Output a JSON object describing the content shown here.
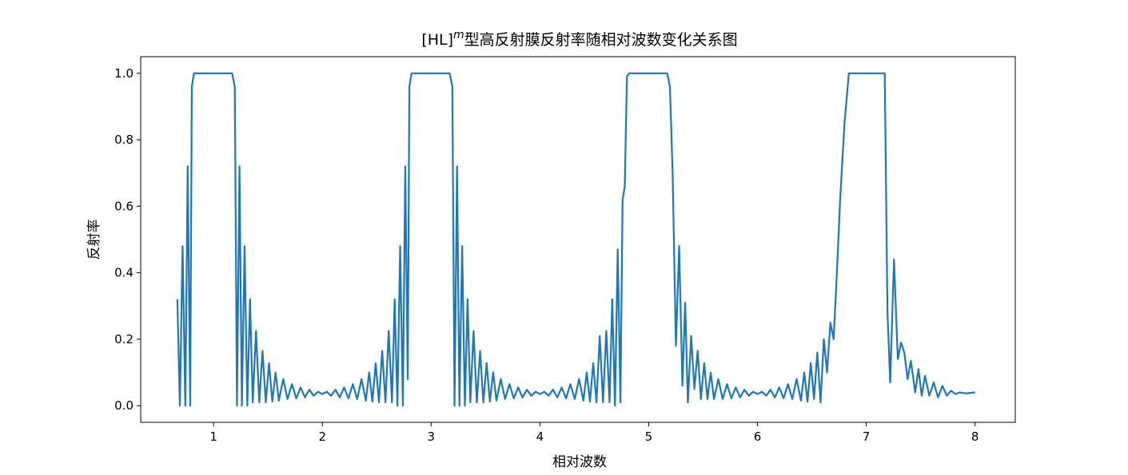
{
  "chart_data": {
    "type": "line",
    "title": "[HL]",
    "title_superscript": "m",
    "title_suffix": "型高反射膜反射率随相对波数变化关系图",
    "xlabel": "相对波数",
    "ylabel": "反射率",
    "xlim": [
      0.33,
      8.37
    ],
    "ylim": [
      -0.05,
      1.05
    ],
    "x_ticks": [
      1,
      2,
      3,
      4,
      5,
      6,
      7,
      8
    ],
    "x_tick_labels": [
      "1",
      "2",
      "3",
      "4",
      "5",
      "6",
      "7",
      "8"
    ],
    "y_ticks": [
      0.0,
      0.2,
      0.4,
      0.6,
      0.8,
      1.0
    ],
    "y_tick_labels": [
      "0.0",
      "0.2",
      "0.4",
      "0.6",
      "0.8",
      "1.0"
    ],
    "grid": false,
    "series": [
      {
        "color": "#1f77b4",
        "points": [
          [
            0.667,
            0.32
          ],
          [
            0.69,
            0.0
          ],
          [
            0.715,
            0.48
          ],
          [
            0.74,
            0.0
          ],
          [
            0.762,
            0.72
          ],
          [
            0.785,
            0.0
          ],
          [
            0.8,
            0.96
          ],
          [
            0.82,
            1.0
          ],
          [
            1.17,
            1.0
          ],
          [
            1.195,
            0.96
          ],
          [
            1.215,
            0.0
          ],
          [
            1.238,
            0.72
          ],
          [
            1.26,
            0.0
          ],
          [
            1.285,
            0.48
          ],
          [
            1.31,
            0.0
          ],
          [
            1.335,
            0.32
          ],
          [
            1.36,
            0.01
          ],
          [
            1.39,
            0.225
          ],
          [
            1.42,
            0.01
          ],
          [
            1.45,
            0.165
          ],
          [
            1.48,
            0.01
          ],
          [
            1.51,
            0.128
          ],
          [
            1.54,
            0.012
          ],
          [
            1.57,
            0.1
          ],
          [
            1.6,
            0.015
          ],
          [
            1.64,
            0.08
          ],
          [
            1.68,
            0.02
          ],
          [
            1.72,
            0.065
          ],
          [
            1.76,
            0.022
          ],
          [
            1.8,
            0.055
          ],
          [
            1.84,
            0.025
          ],
          [
            1.88,
            0.048
          ],
          [
            1.92,
            0.03
          ],
          [
            1.96,
            0.042
          ],
          [
            2.0,
            0.035
          ],
          [
            2.04,
            0.042
          ],
          [
            2.08,
            0.03
          ],
          [
            2.12,
            0.048
          ],
          [
            2.16,
            0.025
          ],
          [
            2.2,
            0.055
          ],
          [
            2.24,
            0.022
          ],
          [
            2.28,
            0.065
          ],
          [
            2.32,
            0.02
          ],
          [
            2.36,
            0.08
          ],
          [
            2.4,
            0.015
          ],
          [
            2.43,
            0.1
          ],
          [
            2.46,
            0.012
          ],
          [
            2.49,
            0.128
          ],
          [
            2.52,
            0.01
          ],
          [
            2.55,
            0.165
          ],
          [
            2.58,
            0.01
          ],
          [
            2.61,
            0.225
          ],
          [
            2.64,
            0.01
          ],
          [
            2.665,
            0.32
          ],
          [
            2.69,
            0.0
          ],
          [
            2.715,
            0.48
          ],
          [
            2.74,
            0.0
          ],
          [
            2.762,
            0.72
          ],
          [
            2.785,
            0.08
          ],
          [
            2.8,
            0.96
          ],
          [
            2.82,
            1.0
          ],
          [
            3.17,
            1.0
          ],
          [
            3.195,
            0.96
          ],
          [
            3.215,
            0.0
          ],
          [
            3.238,
            0.72
          ],
          [
            3.26,
            0.0
          ],
          [
            3.285,
            0.48
          ],
          [
            3.31,
            0.0
          ],
          [
            3.335,
            0.32
          ],
          [
            3.36,
            0.01
          ],
          [
            3.39,
            0.225
          ],
          [
            3.42,
            0.01
          ],
          [
            3.45,
            0.165
          ],
          [
            3.48,
            0.01
          ],
          [
            3.51,
            0.128
          ],
          [
            3.54,
            0.012
          ],
          [
            3.57,
            0.1
          ],
          [
            3.6,
            0.015
          ],
          [
            3.64,
            0.08
          ],
          [
            3.68,
            0.02
          ],
          [
            3.72,
            0.065
          ],
          [
            3.76,
            0.022
          ],
          [
            3.8,
            0.055
          ],
          [
            3.84,
            0.025
          ],
          [
            3.88,
            0.048
          ],
          [
            3.92,
            0.03
          ],
          [
            3.96,
            0.042
          ],
          [
            4.0,
            0.035
          ],
          [
            4.04,
            0.042
          ],
          [
            4.08,
            0.03
          ],
          [
            4.12,
            0.048
          ],
          [
            4.16,
            0.025
          ],
          [
            4.2,
            0.055
          ],
          [
            4.24,
            0.022
          ],
          [
            4.28,
            0.065
          ],
          [
            4.32,
            0.02
          ],
          [
            4.36,
            0.08
          ],
          [
            4.4,
            0.015
          ],
          [
            4.43,
            0.1
          ],
          [
            4.46,
            0.012
          ],
          [
            4.49,
            0.128
          ],
          [
            4.52,
            0.01
          ],
          [
            4.55,
            0.21
          ],
          [
            4.58,
            0.01
          ],
          [
            4.61,
            0.225
          ],
          [
            4.64,
            0.01
          ],
          [
            4.665,
            0.32
          ],
          [
            4.69,
            0.0
          ],
          [
            4.715,
            0.47
          ],
          [
            4.74,
            0.01
          ],
          [
            4.76,
            0.62
          ],
          [
            4.78,
            0.66
          ],
          [
            4.8,
            0.99
          ],
          [
            4.82,
            1.0
          ],
          [
            5.17,
            1.0
          ],
          [
            5.195,
            0.96
          ],
          [
            5.22,
            0.7
          ],
          [
            5.25,
            0.18
          ],
          [
            5.28,
            0.48
          ],
          [
            5.31,
            0.06
          ],
          [
            5.335,
            0.31
          ],
          [
            5.36,
            0.01
          ],
          [
            5.39,
            0.21
          ],
          [
            5.42,
            0.05
          ],
          [
            5.45,
            0.165
          ],
          [
            5.48,
            0.02
          ],
          [
            5.51,
            0.128
          ],
          [
            5.54,
            0.02
          ],
          [
            5.57,
            0.1
          ],
          [
            5.6,
            0.02
          ],
          [
            5.64,
            0.08
          ],
          [
            5.68,
            0.02
          ],
          [
            5.72,
            0.065
          ],
          [
            5.76,
            0.022
          ],
          [
            5.8,
            0.055
          ],
          [
            5.84,
            0.025
          ],
          [
            5.88,
            0.048
          ],
          [
            5.92,
            0.03
          ],
          [
            5.96,
            0.042
          ],
          [
            6.0,
            0.035
          ],
          [
            6.04,
            0.042
          ],
          [
            6.08,
            0.03
          ],
          [
            6.12,
            0.048
          ],
          [
            6.16,
            0.025
          ],
          [
            6.2,
            0.055
          ],
          [
            6.24,
            0.022
          ],
          [
            6.28,
            0.065
          ],
          [
            6.32,
            0.02
          ],
          [
            6.36,
            0.08
          ],
          [
            6.4,
            0.015
          ],
          [
            6.43,
            0.1
          ],
          [
            6.46,
            0.012
          ],
          [
            6.49,
            0.128
          ],
          [
            6.52,
            0.02
          ],
          [
            6.55,
            0.16
          ],
          [
            6.58,
            0.01
          ],
          [
            6.61,
            0.2
          ],
          [
            6.64,
            0.1
          ],
          [
            6.67,
            0.25
          ],
          [
            6.7,
            0.2
          ],
          [
            6.73,
            0.4
          ],
          [
            6.76,
            0.62
          ],
          [
            6.8,
            0.85
          ],
          [
            6.84,
            1.0
          ],
          [
            7.17,
            1.0
          ],
          [
            7.195,
            0.28
          ],
          [
            7.22,
            0.07
          ],
          [
            7.255,
            0.44
          ],
          [
            7.29,
            0.14
          ],
          [
            7.32,
            0.19
          ],
          [
            7.35,
            0.16
          ],
          [
            7.38,
            0.08
          ],
          [
            7.41,
            0.135
          ],
          [
            7.45,
            0.04
          ],
          [
            7.48,
            0.11
          ],
          [
            7.51,
            0.03
          ],
          [
            7.54,
            0.09
          ],
          [
            7.58,
            0.03
          ],
          [
            7.62,
            0.07
          ],
          [
            7.66,
            0.025
          ],
          [
            7.7,
            0.06
          ],
          [
            7.74,
            0.03
          ],
          [
            7.78,
            0.045
          ],
          [
            7.82,
            0.035
          ],
          [
            7.86,
            0.04
          ],
          [
            7.92,
            0.037
          ],
          [
            8.0,
            0.04
          ]
        ]
      }
    ]
  }
}
